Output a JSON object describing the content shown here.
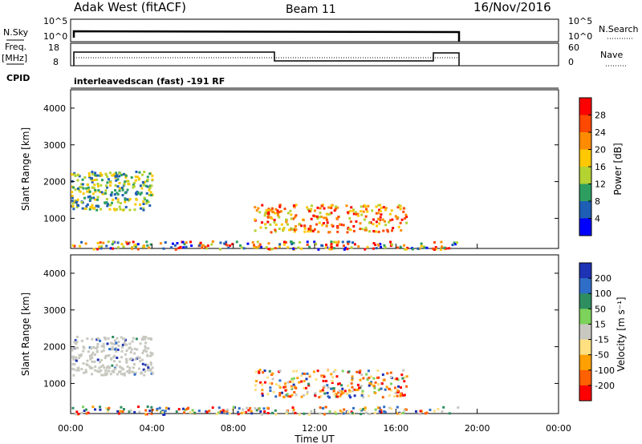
{
  "header": {
    "station": "Adak West (fitACF)",
    "beam": "Beam 11",
    "date": "16/Nov/2016"
  },
  "top_panels": {
    "nsky_label": "N.Sky",
    "nsearch_label": "N.Search",
    "freq_label_1": "Freq.",
    "freq_label_2": "[MHz]",
    "nave_label": "Nave",
    "cpid_label": "CPID",
    "cpid_value": "interleavedscan (fast) -191 RF",
    "nsky_ticks": [
      "10^5",
      "10^0"
    ],
    "nsearch_ticks": [
      "10^5",
      "10^0"
    ],
    "freq_ticks": [
      "18",
      "8"
    ],
    "nave_ticks": [
      "60",
      "0"
    ]
  },
  "chart_data": [
    {
      "type": "heatmap",
      "name": "power-panel",
      "ylabel": "Slant Range [km]",
      "xlabel": "",
      "xlim": [
        "00:00",
        "00:00"
      ],
      "ylim": [
        180,
        4500
      ],
      "yticks": [
        1000,
        2000,
        3000,
        4000
      ],
      "colorbar_label": "Power [dB]",
      "colorbar_ticks": [
        "28",
        "24",
        "20",
        "16",
        "12",
        "8",
        "4"
      ],
      "colorbar_colors": [
        "#ff0000",
        "#ff4800",
        "#ff8c00",
        "#ffc800",
        "#b4d232",
        "#2e9e60",
        "#1e5eb4",
        "#0000ff"
      ],
      "regions": [
        {
          "t": [
            0.0,
            4.0
          ],
          "r": [
            1250,
            2300
          ],
          "level": "mid"
        },
        {
          "t": [
            9.0,
            16.5
          ],
          "r": [
            650,
            1400
          ],
          "level": "high"
        },
        {
          "t": [
            0.0,
            19.0
          ],
          "r": [
            180,
            400
          ],
          "level": "mixed"
        }
      ]
    },
    {
      "type": "heatmap",
      "name": "velocity-panel",
      "ylabel": "Slant Range [km]",
      "xlabel": "Time UT",
      "xticks": [
        "00:00",
        "04:00",
        "08:00",
        "12:00",
        "16:00",
        "20:00",
        "00:00"
      ],
      "ylim": [
        180,
        4500
      ],
      "yticks": [
        1000,
        2000,
        3000,
        4000
      ],
      "colorbar_label": "Velocity [m s⁻¹]",
      "colorbar_ticks": [
        "200",
        "100",
        "50",
        "15",
        "-15",
        "-50",
        "-100",
        "-200"
      ],
      "colorbar_colors": [
        "#1e32b4",
        "#2e6ec8",
        "#2e8e60",
        "#7cd25a",
        "#c8c8c0",
        "#ffe080",
        "#ffa000",
        "#ff6000",
        "#ff0000"
      ],
      "regions": [
        {
          "t": [
            0.0,
            4.0
          ],
          "r": [
            1250,
            2300
          ],
          "level": "grey"
        },
        {
          "t": [
            9.0,
            16.5
          ],
          "r": [
            650,
            1400
          ],
          "level": "negative"
        },
        {
          "t": [
            0.0,
            19.0
          ],
          "r": [
            180,
            400
          ],
          "level": "mixed"
        }
      ]
    }
  ],
  "colors": {
    "axis": "#000000",
    "grey_scatter": "#c8c8c0"
  }
}
